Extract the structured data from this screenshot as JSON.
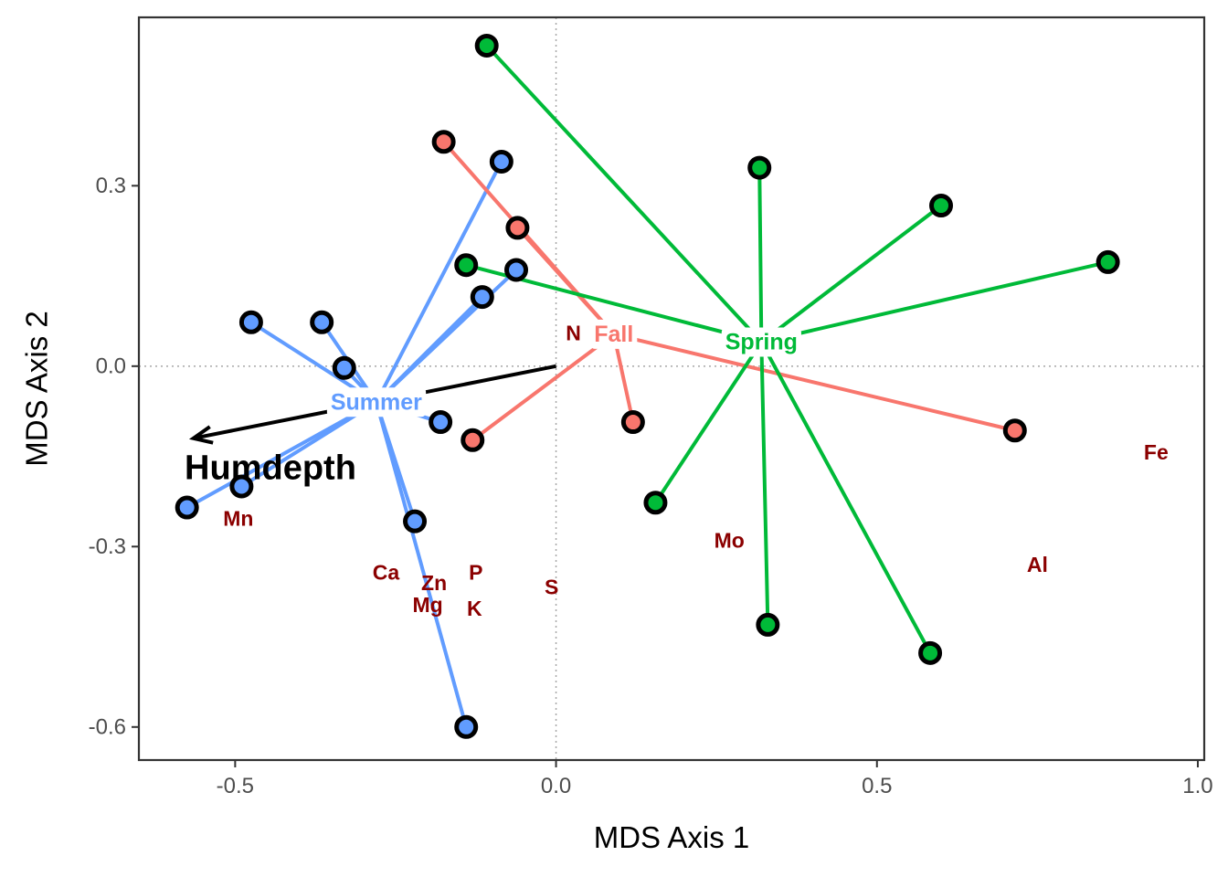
{
  "chart_data": {
    "type": "scatter",
    "xlabel": "MDS Axis 1",
    "ylabel": "MDS Axis 2",
    "xlim": [
      -0.65,
      1.01
    ],
    "ylim": [
      -0.655,
      0.58
    ],
    "xticks": [
      -0.5,
      0.0,
      0.5,
      1.0
    ],
    "xtick_labels": [
      "-0.5",
      "0.0",
      "0.5",
      "1.0"
    ],
    "yticks": [
      -0.6,
      -0.3,
      0.0,
      0.3
    ],
    "ytick_labels": [
      "-0.6",
      "-0.3",
      "0.0",
      "0.3"
    ],
    "grid": false,
    "reference_lines": {
      "x": 0,
      "y": 0,
      "style": "dotted"
    },
    "series": [
      {
        "name": "Summer",
        "color": "#619cff",
        "centroid": {
          "label": "Summer",
          "x": -0.28,
          "y": -0.06
        },
        "points": [
          {
            "x": -0.575,
            "y": -0.235
          },
          {
            "x": -0.49,
            "y": -0.2
          },
          {
            "x": -0.475,
            "y": 0.073
          },
          {
            "x": -0.365,
            "y": 0.073
          },
          {
            "x": -0.33,
            "y": -0.003
          },
          {
            "x": -0.22,
            "y": -0.258
          },
          {
            "x": -0.18,
            "y": -0.093
          },
          {
            "x": -0.14,
            "y": -0.6
          },
          {
            "x": -0.115,
            "y": 0.115
          },
          {
            "x": -0.085,
            "y": 0.34
          },
          {
            "x": -0.062,
            "y": 0.16
          }
        ]
      },
      {
        "name": "Fall",
        "color": "#f8766d",
        "centroid": {
          "label": "Fall",
          "x": 0.09,
          "y": 0.053
        },
        "points": [
          {
            "x": -0.175,
            "y": 0.373
          },
          {
            "x": -0.06,
            "y": 0.23
          },
          {
            "x": -0.13,
            "y": -0.123
          },
          {
            "x": 0.12,
            "y": -0.093
          },
          {
            "x": 0.715,
            "y": -0.107
          }
        ]
      },
      {
        "name": "Spring",
        "color": "#00ba38",
        "centroid": {
          "label": "Spring",
          "x": 0.32,
          "y": 0.04
        },
        "points": [
          {
            "x": -0.108,
            "y": 0.533
          },
          {
            "x": -0.14,
            "y": 0.168
          },
          {
            "x": 0.317,
            "y": 0.33
          },
          {
            "x": 0.6,
            "y": 0.267
          },
          {
            "x": 0.86,
            "y": 0.173
          },
          {
            "x": 0.155,
            "y": -0.227
          },
          {
            "x": 0.33,
            "y": -0.43
          },
          {
            "x": 0.583,
            "y": -0.477
          }
        ]
      }
    ],
    "vector": {
      "label": "Humdepth",
      "x": -0.565,
      "y": -0.12,
      "label_x": -0.445,
      "label_y": -0.17
    },
    "element_labels": [
      {
        "text": "N",
        "x": 0.027,
        "y": 0.055
      },
      {
        "text": "Mn",
        "x": -0.495,
        "y": -0.253
      },
      {
        "text": "Ca",
        "x": -0.265,
        "y": -0.343
      },
      {
        "text": "Zn",
        "x": -0.19,
        "y": -0.36
      },
      {
        "text": "P",
        "x": -0.125,
        "y": -0.343
      },
      {
        "text": "Mg",
        "x": -0.2,
        "y": -0.397
      },
      {
        "text": "K",
        "x": -0.127,
        "y": -0.403
      },
      {
        "text": "S",
        "x": -0.007,
        "y": -0.367
      },
      {
        "text": "Mo",
        "x": 0.27,
        "y": -0.29
      },
      {
        "text": "Al",
        "x": 0.75,
        "y": -0.33
      },
      {
        "text": "Fe",
        "x": 0.935,
        "y": -0.143
      }
    ]
  }
}
